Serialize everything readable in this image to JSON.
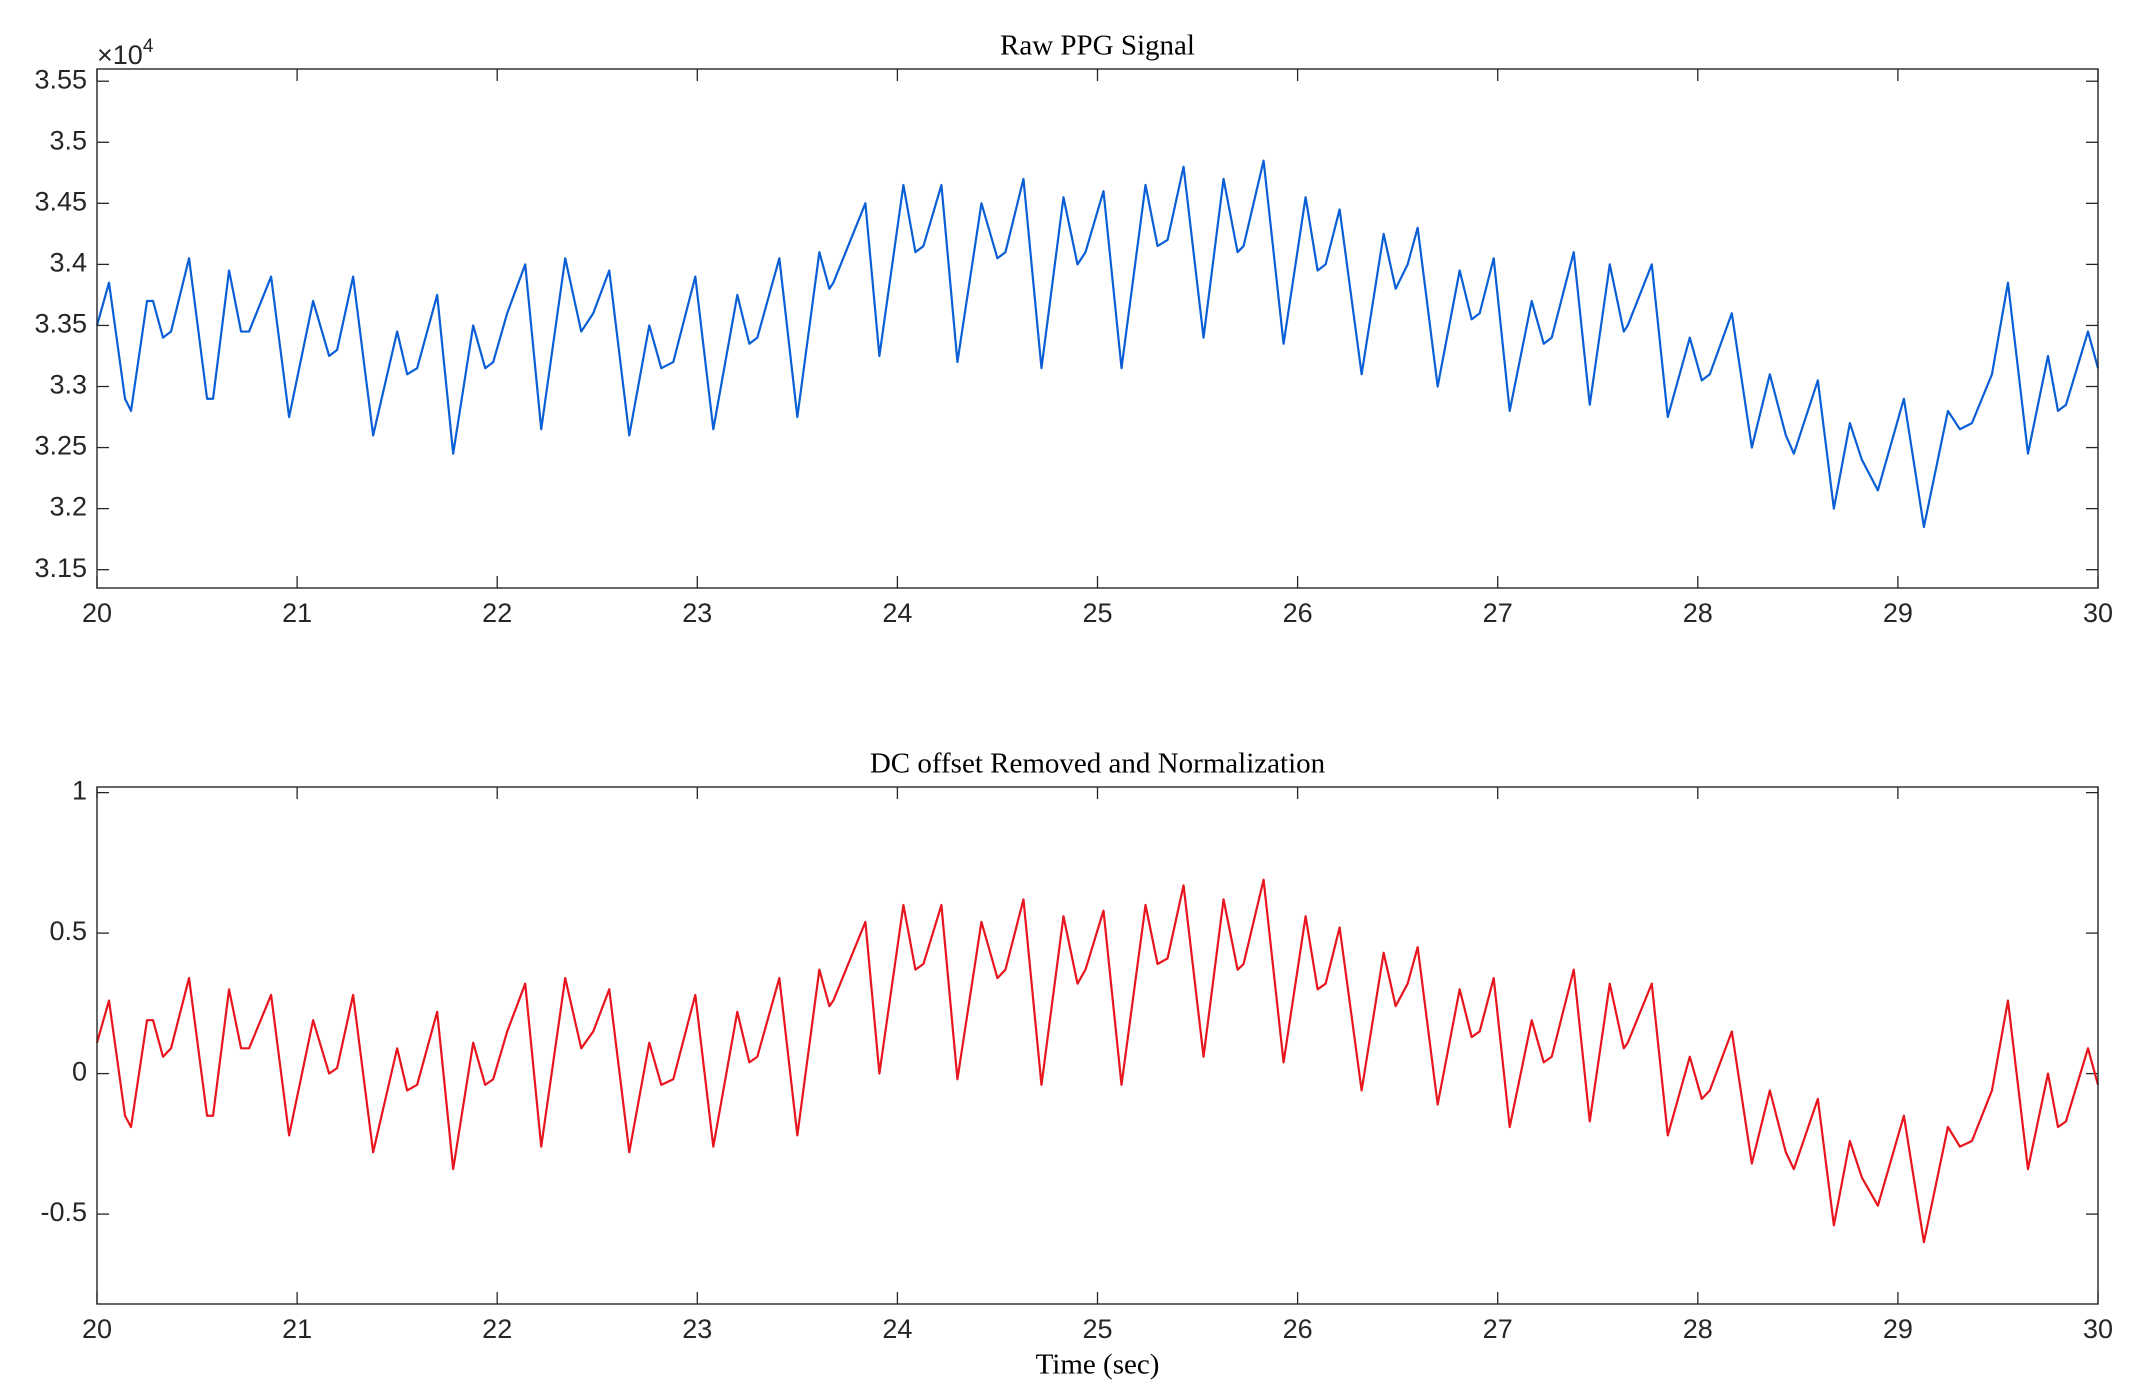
{
  "chart_data": [
    {
      "type": "line",
      "title": "Raw PPG Signal",
      "y_multiplier": {
        "base": "×10",
        "exponent": "4"
      },
      "xlim": [
        20,
        30
      ],
      "xticks": [
        20,
        21,
        22,
        23,
        24,
        25,
        26,
        27,
        28,
        29,
        30
      ],
      "ylim": [
        3.135,
        3.56
      ],
      "yticks": [
        3.15,
        3.2,
        3.25,
        3.3,
        3.35,
        3.4,
        3.45,
        3.5,
        3.55
      ],
      "x": [
        20.0,
        20.06,
        20.14,
        20.17,
        20.25,
        20.28,
        20.33,
        20.37,
        20.46,
        20.55,
        20.58,
        20.66,
        20.72,
        20.76,
        20.87,
        20.96,
        21.08,
        21.16,
        21.2,
        21.28,
        21.38,
        21.5,
        21.55,
        21.6,
        21.7,
        21.78,
        21.88,
        21.94,
        21.98,
        22.05,
        22.14,
        22.22,
        22.34,
        22.42,
        22.48,
        22.56,
        22.66,
        22.76,
        22.82,
        22.88,
        22.99,
        23.08,
        23.2,
        23.26,
        23.3,
        23.41,
        23.5,
        23.61,
        23.66,
        23.68,
        23.84,
        23.91,
        24.03,
        24.09,
        24.13,
        24.22,
        24.3,
        24.42,
        24.5,
        24.54,
        24.63,
        24.72,
        24.83,
        24.9,
        24.94,
        25.03,
        25.12,
        25.24,
        25.3,
        25.35,
        25.43,
        25.53,
        25.63,
        25.7,
        25.73,
        25.83,
        25.93,
        26.04,
        26.1,
        26.14,
        26.21,
        26.32,
        26.43,
        26.49,
        26.55,
        26.6,
        26.7,
        26.81,
        26.87,
        26.91,
        26.98,
        27.06,
        27.17,
        27.23,
        27.27,
        27.38,
        27.46,
        27.56,
        27.63,
        27.65,
        27.77,
        27.85,
        27.96,
        28.02,
        28.06,
        28.17,
        28.27,
        28.36,
        28.44,
        28.48,
        28.6,
        28.68,
        28.76,
        28.82,
        28.9,
        29.03,
        29.13,
        29.25,
        29.31,
        29.37,
        29.47,
        29.55,
        29.65,
        29.75,
        29.8,
        29.84,
        29.95,
        30.0
      ],
      "series": [
        {
          "color": "#0a5fd6",
          "values": [
            3.35,
            3.385,
            3.29,
            3.28,
            3.37,
            3.37,
            3.34,
            3.345,
            3.405,
            3.29,
            3.29,
            3.395,
            3.345,
            3.345,
            3.39,
            3.275,
            3.37,
            3.325,
            3.33,
            3.39,
            3.26,
            3.345,
            3.31,
            3.315,
            3.375,
            3.245,
            3.35,
            3.315,
            3.32,
            3.36,
            3.4,
            3.265,
            3.405,
            3.345,
            3.36,
            3.395,
            3.26,
            3.35,
            3.315,
            3.32,
            3.39,
            3.265,
            3.375,
            3.335,
            3.34,
            3.405,
            3.275,
            3.41,
            3.38,
            3.385,
            3.45,
            3.325,
            3.465,
            3.41,
            3.415,
            3.465,
            3.32,
            3.45,
            3.405,
            3.41,
            3.47,
            3.315,
            3.455,
            3.4,
            3.41,
            3.46,
            3.315,
            3.465,
            3.415,
            3.42,
            3.48,
            3.34,
            3.47,
            3.41,
            3.415,
            3.485,
            3.335,
            3.455,
            3.395,
            3.4,
            3.445,
            3.31,
            3.425,
            3.38,
            3.4,
            3.43,
            3.3,
            3.395,
            3.355,
            3.36,
            3.405,
            3.28,
            3.37,
            3.335,
            3.34,
            3.41,
            3.285,
            3.4,
            3.345,
            3.35,
            3.4,
            3.275,
            3.34,
            3.305,
            3.31,
            3.36,
            3.25,
            3.31,
            3.26,
            3.245,
            3.305,
            3.2,
            3.27,
            3.24,
            3.215,
            3.29,
            3.185,
            3.28,
            3.265,
            3.27,
            3.31,
            3.385,
            3.245,
            3.325,
            3.28,
            3.285,
            3.345,
            3.315
          ]
        }
      ]
    },
    {
      "type": "line",
      "title": "DC offset Removed and Normalization",
      "xlabel": "Time (sec)",
      "xlim": [
        20,
        30
      ],
      "xticks": [
        20,
        21,
        22,
        23,
        24,
        25,
        26,
        27,
        28,
        29,
        30
      ],
      "ylim": [
        -0.82,
        1.02
      ],
      "yticks": [
        -0.5,
        0,
        0.5,
        1
      ],
      "x": [
        20.0,
        20.06,
        20.14,
        20.17,
        20.25,
        20.28,
        20.33,
        20.37,
        20.46,
        20.55,
        20.58,
        20.66,
        20.72,
        20.76,
        20.87,
        20.96,
        21.08,
        21.16,
        21.2,
        21.28,
        21.38,
        21.5,
        21.55,
        21.6,
        21.7,
        21.78,
        21.88,
        21.94,
        21.98,
        22.05,
        22.14,
        22.22,
        22.34,
        22.42,
        22.48,
        22.56,
        22.66,
        22.76,
        22.82,
        22.88,
        22.99,
        23.08,
        23.2,
        23.26,
        23.3,
        23.41,
        23.5,
        23.61,
        23.66,
        23.68,
        23.84,
        23.91,
        24.03,
        24.09,
        24.13,
        24.22,
        24.3,
        24.42,
        24.5,
        24.54,
        24.63,
        24.72,
        24.83,
        24.9,
        24.94,
        25.03,
        25.12,
        25.24,
        25.3,
        25.35,
        25.43,
        25.53,
        25.63,
        25.7,
        25.73,
        25.83,
        25.93,
        26.04,
        26.1,
        26.14,
        26.21,
        26.32,
        26.43,
        26.49,
        26.55,
        26.6,
        26.7,
        26.81,
        26.87,
        26.91,
        26.98,
        27.06,
        27.17,
        27.23,
        27.27,
        27.38,
        27.46,
        27.56,
        27.63,
        27.65,
        27.77,
        27.85,
        27.96,
        28.02,
        28.06,
        28.17,
        28.27,
        28.36,
        28.44,
        28.48,
        28.6,
        28.68,
        28.76,
        28.82,
        28.9,
        29.03,
        29.13,
        29.25,
        29.31,
        29.37,
        29.47,
        29.55,
        29.65,
        29.75,
        29.8,
        29.84,
        29.95,
        30.0
      ],
      "series": [
        {
          "color": "#e8141e",
          "values": [
            0.11,
            0.26,
            -0.15,
            -0.19,
            0.19,
            0.19,
            0.06,
            0.09,
            0.34,
            -0.15,
            -0.15,
            0.3,
            0.09,
            0.09,
            0.28,
            -0.22,
            0.19,
            0,
            0.02,
            0.28,
            -0.28,
            0.09,
            -0.06,
            -0.04,
            0.22,
            -0.34,
            0.11,
            -0.04,
            -0.02,
            0.15,
            0.32,
            -0.26,
            0.34,
            0.09,
            0.15,
            0.3,
            -0.28,
            0.11,
            -0.04,
            -0.02,
            0.28,
            -0.26,
            0.22,
            0.04,
            0.06,
            0.34,
            -0.22,
            0.37,
            0.24,
            0.26,
            0.54,
            0,
            0.6,
            0.37,
            0.39,
            0.6,
            -0.02,
            0.54,
            0.34,
            0.37,
            0.62,
            -0.04,
            0.56,
            0.32,
            0.37,
            0.58,
            -0.04,
            0.6,
            0.39,
            0.41,
            0.67,
            0.06,
            0.62,
            0.37,
            0.39,
            0.69,
            0.04,
            0.56,
            0.3,
            0.32,
            0.52,
            -0.06,
            0.43,
            0.24,
            0.32,
            0.45,
            -0.11,
            0.3,
            0.13,
            0.15,
            0.34,
            -0.19,
            0.19,
            0.04,
            0.06,
            0.37,
            -0.17,
            0.32,
            0.09,
            0.11,
            0.32,
            -0.22,
            0.06,
            -0.09,
            -0.06,
            0.15,
            -0.32,
            -0.06,
            -0.28,
            -0.34,
            -0.09,
            -0.54,
            -0.24,
            -0.37,
            -0.47,
            -0.15,
            -0.6,
            -0.19,
            -0.26,
            -0.24,
            -0.06,
            0.26,
            -0.34,
            0,
            -0.19,
            -0.17,
            0.09,
            -0.04
          ]
        }
      ]
    }
  ]
}
